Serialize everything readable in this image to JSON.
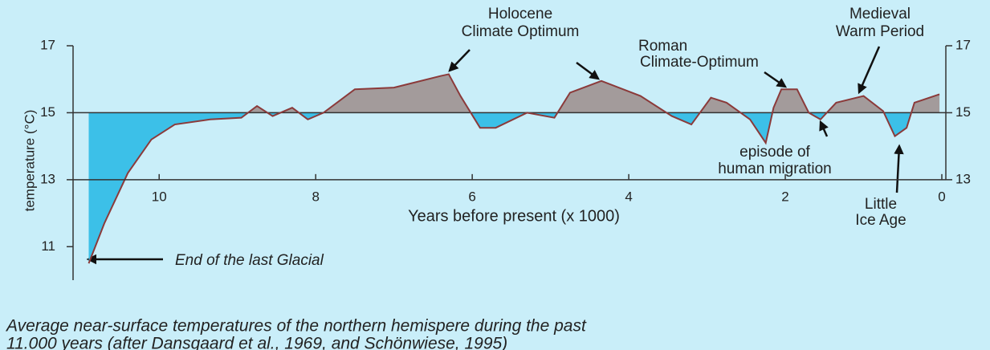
{
  "chart_data": {
    "type": "area",
    "title": [
      "Average near-surface temperatures of the northern hemispere during the past",
      "11.000 years (after Dansgaard et al., 1969, and Schönwiese, 1995)"
    ],
    "x_label": "Years before present (x 1000)",
    "y_label": "temperature (°C)",
    "x": [
      10.9,
      10.7,
      10.4,
      10.1,
      9.8,
      9.35,
      8.95,
      8.75,
      8.55,
      8.3,
      8.1,
      7.9,
      7.5,
      7.0,
      6.4,
      6.3,
      6.15,
      5.9,
      5.7,
      5.3,
      4.95,
      4.75,
      4.35,
      3.85,
      3.45,
      3.2,
      2.95,
      2.75,
      2.45,
      2.25,
      2.15,
      2.05,
      1.85,
      1.7,
      1.55,
      1.35,
      1.0,
      0.75,
      0.6,
      0.45,
      0.35,
      0.03
    ],
    "values": [
      10.5,
      11.7,
      13.2,
      14.2,
      14.65,
      14.8,
      14.85,
      15.2,
      14.9,
      15.15,
      14.8,
      15.0,
      15.7,
      15.75,
      16.1,
      16.15,
      15.5,
      14.55,
      14.55,
      15.0,
      14.85,
      15.6,
      15.95,
      15.5,
      14.9,
      14.65,
      15.45,
      15.3,
      14.8,
      14.1,
      15.15,
      15.7,
      15.7,
      15.0,
      14.8,
      15.3,
      15.5,
      15.05,
      14.3,
      14.55,
      15.3,
      15.55
    ],
    "reference_line": 15,
    "line_color": "#8b3a3a",
    "above_color": "#a39b9b",
    "below_color": "#3cc0e8",
    "xlim": [
      11.1,
      0
    ],
    "xticks": [
      10,
      8,
      6,
      4,
      2,
      0
    ],
    "ylim": [
      10,
      17
    ],
    "yticks": [
      11,
      13,
      15,
      17
    ],
    "y2lim": [
      10,
      17
    ],
    "y2ticks": [
      13,
      15,
      17
    ],
    "annotations": [
      {
        "text": [
          "Holocene",
          "Climate Optimum"
        ]
      },
      {
        "text": [
          "Roman",
          "Climate-Optimum"
        ]
      },
      {
        "text": [
          "Medieval",
          "Warm Period"
        ]
      },
      {
        "text": [
          "episode of",
          "human migration"
        ]
      },
      {
        "text": [
          "Little",
          "Ice Age"
        ]
      },
      {
        "text": [
          "End of the last Glacial"
        ]
      }
    ]
  }
}
